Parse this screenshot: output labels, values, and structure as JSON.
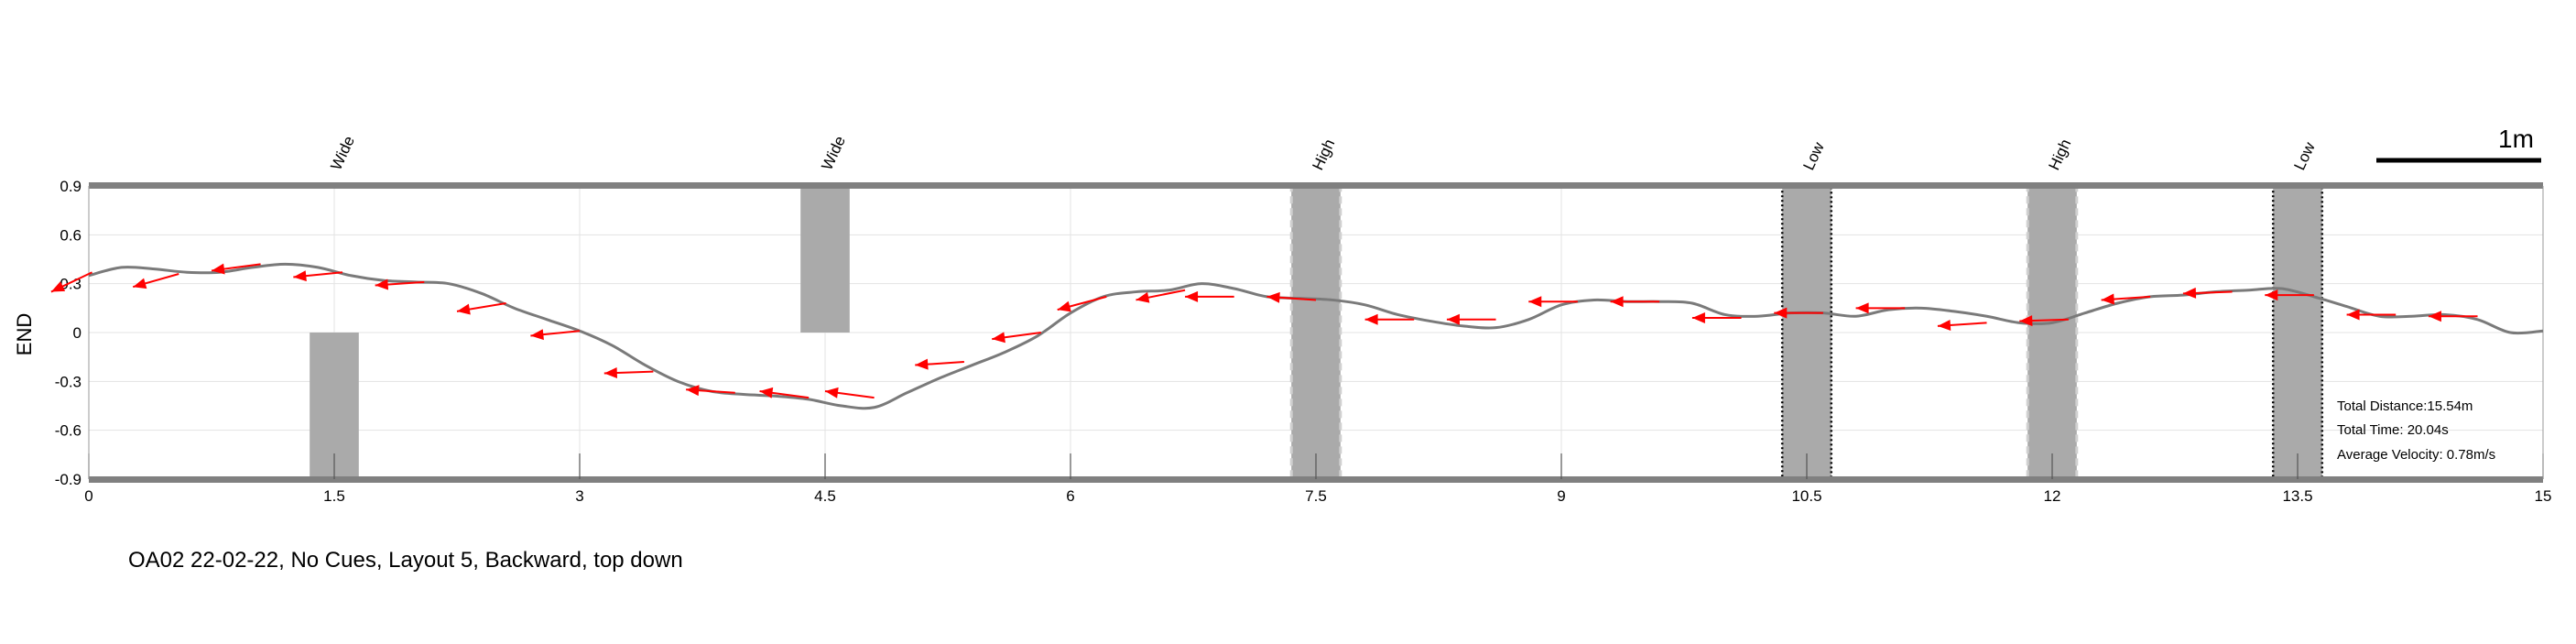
{
  "chart_data": {
    "type": "line",
    "xlabel": "",
    "ylabel": "END",
    "xlim": [
      0,
      15
    ],
    "ylim": [
      -0.9,
      0.9
    ],
    "xticks": [
      "0",
      "1.5",
      "3",
      "4.5",
      "6",
      "7.5",
      "9",
      "10.5",
      "12",
      "13.5",
      "15"
    ],
    "yticks": [
      "0.9",
      "0.6",
      "0.3",
      "0",
      "-0.3",
      "-0.6",
      "-0.9"
    ],
    "grid": true,
    "trajectory": {
      "x": [
        0,
        0.2,
        0.4,
        0.6,
        0.8,
        1.0,
        1.2,
        1.4,
        1.6,
        1.8,
        2.0,
        2.2,
        2.4,
        2.6,
        2.8,
        3.0,
        3.2,
        3.4,
        3.6,
        3.8,
        4.0,
        4.2,
        4.4,
        4.6,
        4.8,
        5.0,
        5.2,
        5.4,
        5.6,
        5.8,
        6.0,
        6.2,
        6.4,
        6.6,
        6.8,
        7.0,
        7.2,
        7.4,
        7.6,
        7.8,
        8.0,
        8.2,
        8.4,
        8.6,
        8.8,
        9.0,
        9.2,
        9.4,
        9.6,
        9.8,
        10.0,
        10.2,
        10.4,
        10.6,
        10.8,
        11.0,
        11.2,
        11.4,
        11.6,
        11.8,
        12.0,
        12.2,
        12.4,
        12.6,
        12.8,
        13.0,
        13.2,
        13.4,
        13.6,
        13.8,
        14.0,
        14.2,
        14.4,
        14.6,
        14.8,
        15.0
      ],
      "y": [
        0.35,
        0.4,
        0.39,
        0.37,
        0.37,
        0.4,
        0.42,
        0.4,
        0.35,
        0.32,
        0.31,
        0.3,
        0.24,
        0.15,
        0.08,
        0.01,
        -0.08,
        -0.2,
        -0.3,
        -0.36,
        -0.38,
        -0.39,
        -0.41,
        -0.45,
        -0.46,
        -0.37,
        -0.28,
        -0.2,
        -0.12,
        -0.02,
        0.12,
        0.22,
        0.25,
        0.26,
        0.3,
        0.27,
        0.22,
        0.21,
        0.2,
        0.17,
        0.11,
        0.07,
        0.04,
        0.03,
        0.08,
        0.17,
        0.2,
        0.19,
        0.19,
        0.18,
        0.11,
        0.1,
        0.12,
        0.12,
        0.1,
        0.14,
        0.15,
        0.13,
        0.1,
        0.06,
        0.06,
        0.12,
        0.18,
        0.22,
        0.23,
        0.25,
        0.26,
        0.27,
        0.22,
        0.16,
        0.1,
        0.1,
        0.11,
        0.08,
        0.0,
        0.01
      ]
    },
    "heading_arrows": [
      {
        "x": 0.02,
        "y": 0.37,
        "dx": -0.25,
        "dy": -0.12
      },
      {
        "x": 0.55,
        "y": 0.36,
        "dx": -0.28,
        "dy": -0.08
      },
      {
        "x": 1.05,
        "y": 0.42,
        "dx": -0.3,
        "dy": -0.04
      },
      {
        "x": 1.55,
        "y": 0.37,
        "dx": -0.3,
        "dy": -0.03
      },
      {
        "x": 2.05,
        "y": 0.31,
        "dx": -0.3,
        "dy": -0.02
      },
      {
        "x": 2.55,
        "y": 0.18,
        "dx": -0.3,
        "dy": -0.05
      },
      {
        "x": 3.0,
        "y": 0.01,
        "dx": -0.3,
        "dy": -0.03
      },
      {
        "x": 3.45,
        "y": -0.24,
        "dx": -0.3,
        "dy": -0.01
      },
      {
        "x": 3.95,
        "y": -0.37,
        "dx": -0.3,
        "dy": 0.02
      },
      {
        "x": 4.4,
        "y": -0.4,
        "dx": -0.3,
        "dy": 0.04
      },
      {
        "x": 4.8,
        "y": -0.4,
        "dx": -0.3,
        "dy": 0.04
      },
      {
        "x": 5.35,
        "y": -0.18,
        "dx": -0.3,
        "dy": -0.02
      },
      {
        "x": 5.82,
        "y": 0.0,
        "dx": -0.3,
        "dy": -0.04
      },
      {
        "x": 6.22,
        "y": 0.22,
        "dx": -0.3,
        "dy": -0.08
      },
      {
        "x": 6.7,
        "y": 0.26,
        "dx": -0.3,
        "dy": -0.06
      },
      {
        "x": 7.0,
        "y": 0.22,
        "dx": -0.3,
        "dy": 0.0
      },
      {
        "x": 7.5,
        "y": 0.2,
        "dx": -0.3,
        "dy": 0.02
      },
      {
        "x": 8.1,
        "y": 0.08,
        "dx": -0.3,
        "dy": 0.0
      },
      {
        "x": 8.6,
        "y": 0.08,
        "dx": -0.3,
        "dy": 0.0
      },
      {
        "x": 9.1,
        "y": 0.19,
        "dx": -0.3,
        "dy": 0.0
      },
      {
        "x": 9.6,
        "y": 0.19,
        "dx": -0.3,
        "dy": 0.0
      },
      {
        "x": 10.1,
        "y": 0.09,
        "dx": -0.3,
        "dy": 0.0
      },
      {
        "x": 10.6,
        "y": 0.12,
        "dx": -0.3,
        "dy": 0.0
      },
      {
        "x": 11.1,
        "y": 0.15,
        "dx": -0.3,
        "dy": 0.0
      },
      {
        "x": 11.6,
        "y": 0.06,
        "dx": -0.3,
        "dy": -0.02
      },
      {
        "x": 12.1,
        "y": 0.08,
        "dx": -0.3,
        "dy": -0.01
      },
      {
        "x": 12.6,
        "y": 0.22,
        "dx": -0.3,
        "dy": -0.02
      },
      {
        "x": 13.1,
        "y": 0.25,
        "dx": -0.3,
        "dy": -0.01
      },
      {
        "x": 13.6,
        "y": 0.23,
        "dx": -0.3,
        "dy": 0.0
      },
      {
        "x": 14.1,
        "y": 0.11,
        "dx": -0.3,
        "dy": 0.0
      },
      {
        "x": 14.6,
        "y": 0.1,
        "dx": -0.3,
        "dy": 0.0
      }
    ],
    "obstacles": [
      {
        "label": "",
        "x_center": 1.5,
        "width": 0.3,
        "y_from": -0.9,
        "y_to": 0,
        "border": "none",
        "show_label": false
      },
      {
        "label": "Wide",
        "x_center": 1.5,
        "width": 0.3,
        "y_from": 0,
        "y_to": 0,
        "border": "none",
        "show_label": true
      },
      {
        "label": "Wide",
        "x_center": 4.5,
        "width": 0.3,
        "y_from": 0,
        "y_to": 0.9,
        "border": "none",
        "show_label": true
      },
      {
        "label": "High",
        "x_center": 7.5,
        "width": 0.3,
        "y_from": -0.9,
        "y_to": 0.9,
        "border": "dashed",
        "show_label": true
      },
      {
        "label": "Low",
        "x_center": 10.5,
        "width": 0.3,
        "y_from": -0.9,
        "y_to": 0.9,
        "border": "dotted",
        "show_label": true
      },
      {
        "label": "High",
        "x_center": 12.0,
        "width": 0.3,
        "y_from": -0.9,
        "y_to": 0.9,
        "border": "dashed",
        "show_label": true
      },
      {
        "label": "Low",
        "x_center": 13.5,
        "width": 0.3,
        "y_from": -0.9,
        "y_to": 0.9,
        "border": "dotted",
        "show_label": true
      }
    ],
    "stats": {
      "distance": "Total Distance:15.54m",
      "time": "Total Time: 20.04s",
      "velocity": "Average Velocity: 0.78m/s"
    },
    "scale_bar_label": "1m",
    "colors": {
      "trajectory": "#7a7a7a",
      "arrows": "#ff0000",
      "obstacle_fill": "#aaaaaa",
      "boundary": "#808080"
    }
  },
  "caption": "OA02 22-02-22, No Cues, Layout 5, Backward, top down"
}
